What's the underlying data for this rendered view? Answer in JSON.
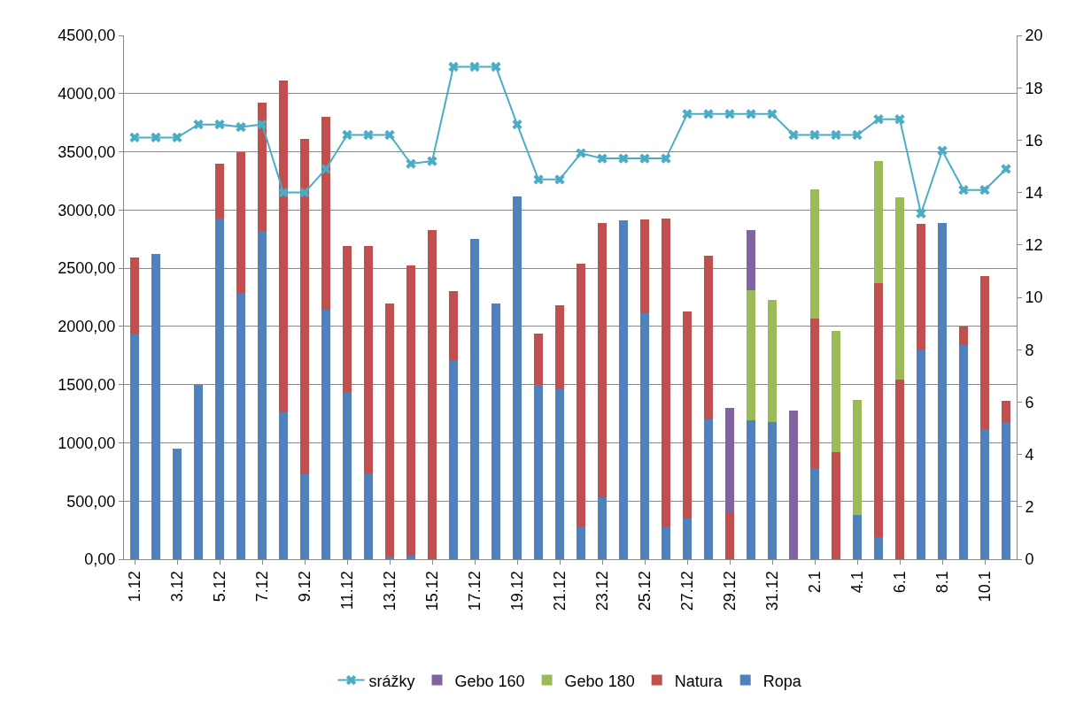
{
  "chart_data": {
    "type": "bar",
    "stacked": true,
    "categories": [
      "1.12",
      null,
      "3.12",
      null,
      "5.12",
      null,
      "7.12",
      null,
      "9.12",
      null,
      "11.12",
      null,
      "13.12",
      null,
      "15.12",
      null,
      "17.12",
      null,
      "19.12",
      null,
      "21.12",
      null,
      "23.12",
      null,
      "25.12",
      null,
      "27.12",
      null,
      "29.12",
      null,
      "31.12",
      null,
      "2.1",
      null,
      "4.1",
      null,
      "6.1",
      null,
      "8.1",
      null,
      "10.1",
      null
    ],
    "series": [
      {
        "name": "Ropa",
        "color": "#4f81bd",
        "values": [
          1940,
          2620,
          950,
          1500,
          2930,
          2290,
          2820,
          1260,
          730,
          2140,
          1440,
          740,
          20,
          30,
          null,
          1710,
          2750,
          2200,
          3120,
          1500,
          1460,
          280,
          530,
          2910,
          2110,
          280,
          350,
          1200,
          null,
          1190,
          1180,
          null,
          780,
          null,
          380,
          190,
          null,
          1800,
          2890,
          1840,
          1120,
          1180
        ]
      },
      {
        "name": "Natura",
        "color": "#c0504d",
        "values": [
          650,
          null,
          null,
          null,
          470,
          1210,
          1100,
          2850,
          2880,
          1660,
          1250,
          1950,
          2180,
          2490,
          2830,
          590,
          null,
          null,
          null,
          440,
          720,
          2260,
          2360,
          null,
          810,
          2650,
          1780,
          1410,
          400,
          null,
          null,
          null,
          1290,
          920,
          null,
          2180,
          1540,
          1080,
          null,
          160,
          1310,
          180
        ]
      },
      {
        "name": "Gebo 180",
        "color": "#9bbb59",
        "values": [
          null,
          null,
          null,
          null,
          null,
          null,
          null,
          null,
          null,
          null,
          null,
          null,
          null,
          null,
          null,
          null,
          null,
          null,
          null,
          null,
          null,
          null,
          null,
          null,
          null,
          null,
          null,
          null,
          null,
          1120,
          1050,
          null,
          1110,
          1040,
          990,
          1050,
          1570,
          null,
          null,
          null,
          null,
          null
        ]
      },
      {
        "name": "Gebo 160",
        "color": "#8064a2",
        "values": [
          null,
          null,
          null,
          null,
          null,
          null,
          null,
          null,
          null,
          null,
          null,
          null,
          null,
          null,
          null,
          null,
          null,
          null,
          null,
          null,
          null,
          null,
          null,
          null,
          null,
          null,
          null,
          null,
          900,
          520,
          null,
          1280,
          null,
          null,
          null,
          null,
          null,
          null,
          null,
          null,
          null,
          null
        ]
      },
      {
        "name": "srážky",
        "color": "#4bacc6",
        "type": "line",
        "axis": "y2",
        "marker": "cross",
        "values": [
          16.1,
          16.1,
          16.1,
          16.6,
          16.6,
          16.5,
          16.6,
          14.0,
          14.0,
          14.9,
          16.2,
          16.2,
          16.2,
          15.1,
          15.2,
          18.8,
          18.8,
          18.8,
          16.6,
          14.5,
          14.5,
          15.5,
          15.3,
          15.3,
          15.3,
          15.3,
          17.0,
          17.0,
          17.0,
          17.0,
          17.0,
          16.2,
          16.2,
          16.2,
          16.2,
          16.8,
          16.8,
          13.2,
          15.6,
          14.1,
          14.1,
          14.9
        ]
      }
    ],
    "ylim": [
      0,
      4500
    ],
    "yticks": [
      {
        "value": 0,
        "label": "0,00"
      },
      {
        "value": 500,
        "label": "500,00"
      },
      {
        "value": 1000,
        "label": "1000,00"
      },
      {
        "value": 1500,
        "label": "1500,00"
      },
      {
        "value": 2000,
        "label": "2000,00"
      },
      {
        "value": 2500,
        "label": "2500,00"
      },
      {
        "value": 3000,
        "label": "3000,00"
      },
      {
        "value": 3500,
        "label": "3500,00"
      },
      {
        "value": 4000,
        "label": "4000,00"
      },
      {
        "value": 4500,
        "label": "4500,00"
      }
    ],
    "y2lim": [
      0,
      20
    ],
    "y2ticks": [
      0,
      2,
      4,
      6,
      8,
      10,
      12,
      14,
      16,
      18,
      20
    ],
    "grid": "y",
    "legend": "bottom"
  }
}
